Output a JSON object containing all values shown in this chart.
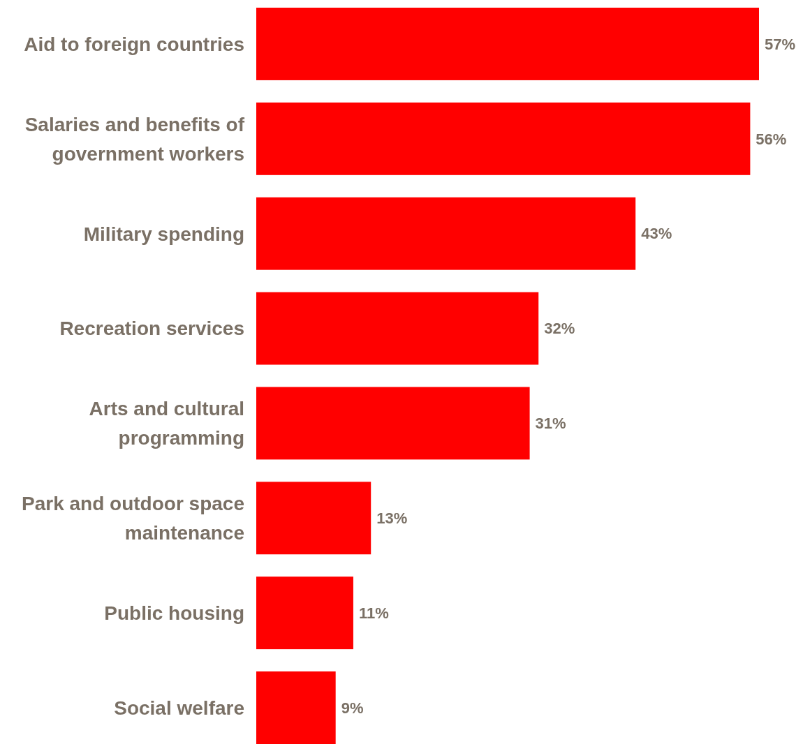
{
  "chart_data": {
    "type": "bar",
    "orientation": "horizontal",
    "categories": [
      "Aid to foreign countries",
      "Salaries and benefits of government workers",
      "Military spending",
      "Recreation services",
      "Arts and cultural programming",
      "Park and outdoor space maintenance",
      "Public housing",
      "Social welfare"
    ],
    "values": [
      57,
      56,
      43,
      32,
      31,
      13,
      11,
      9
    ],
    "value_labels": [
      "57%",
      "56%",
      "43%",
      "32%",
      "31%",
      "13%",
      "11%",
      "9%"
    ],
    "color": "#ff0000"
  }
}
